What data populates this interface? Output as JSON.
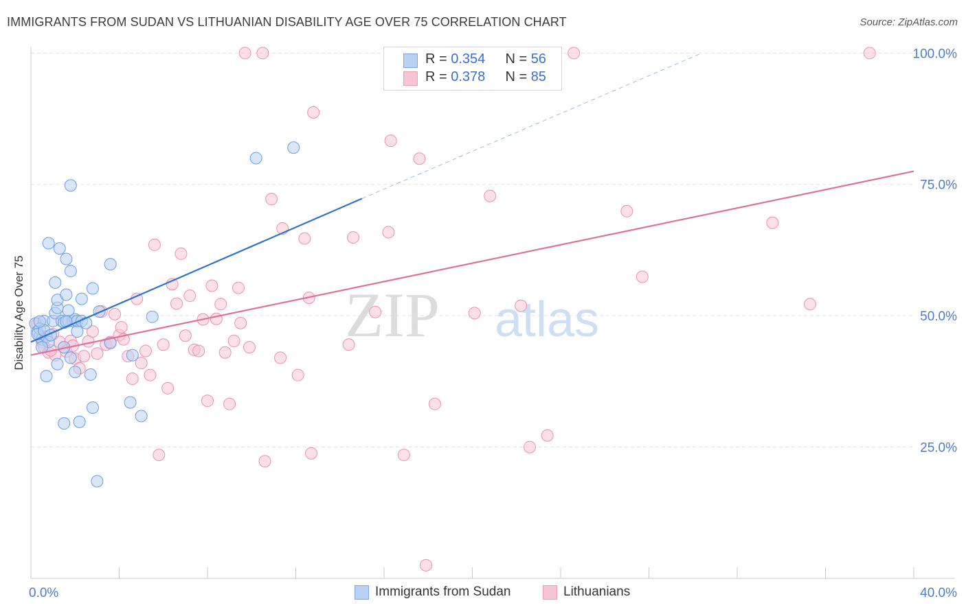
{
  "title": "IMMIGRANTS FROM SUDAN VS LITHUANIAN DISABILITY AGE OVER 75 CORRELATION CHART",
  "source": "Source: ZipAtlas.com",
  "watermark": {
    "zip": "ZIP",
    "atlas": "atlas"
  },
  "legend": {
    "rows": [
      {
        "r_label": "R = ",
        "r_value": "0.354",
        "n_label": "N = ",
        "n_value": "56",
        "color": "#7aa6e8",
        "fill": "#b9d2f3"
      },
      {
        "r_label": "R = ",
        "r_value": "0.378",
        "n_label": "N = ",
        "n_value": "85",
        "color": "#ee9db7",
        "fill": "#f7c6d5"
      }
    ]
  },
  "bottom_legend": [
    {
      "label": "Immigrants from Sudan",
      "color": "#7aa6e8",
      "fill": "#b9d2f3"
    },
    {
      "label": "Lithuanians",
      "color": "#ee9db7",
      "fill": "#f7c6d5"
    }
  ],
  "chart_data": {
    "type": "scatter",
    "title": "IMMIGRANTS FROM SUDAN VS LITHUANIAN DISABILITY AGE OVER 75 CORRELATION CHART",
    "xlabel": "",
    "ylabel": "Disability Age Over 75",
    "xlim": [
      0,
      40
    ],
    "ylim": [
      0,
      102
    ],
    "x_tick_labels": [
      "0.0%",
      "40.0%"
    ],
    "y_ticks": [
      25,
      50,
      75,
      100
    ],
    "y_tick_labels": [
      "25.0%",
      "50.0%",
      "75.0%",
      "100.0%"
    ],
    "grid": true,
    "legend_position": "top-center",
    "series": [
      {
        "name": "Immigrants from Sudan",
        "color": "#6b9de3",
        "fill": "#b9d2f3",
        "trend": {
          "x0": 0.0,
          "y0": 45.0,
          "x1": 15.0,
          "y1": 72.3,
          "dashed_to_x": 30.4,
          "dashed_to_y": 100
        },
        "points": [
          [
            0.2,
            48.5
          ],
          [
            0.3,
            47.0
          ],
          [
            0.4,
            46.0
          ],
          [
            0.5,
            45.5
          ],
          [
            0.6,
            49.0
          ],
          [
            0.7,
            46.0
          ],
          [
            0.8,
            45.0
          ],
          [
            0.5,
            44.0
          ],
          [
            0.4,
            47.5
          ],
          [
            0.3,
            46.5
          ],
          [
            0.7,
            38.5
          ],
          [
            0.8,
            63.8
          ],
          [
            1.0,
            49.0
          ],
          [
            1.1,
            50.5
          ],
          [
            1.2,
            51.5
          ],
          [
            1.1,
            56.3
          ],
          [
            1.2,
            53.0
          ],
          [
            1.2,
            40.8
          ],
          [
            1.3,
            62.8
          ],
          [
            1.4,
            49.0
          ],
          [
            1.5,
            44.0
          ],
          [
            1.5,
            29.5
          ],
          [
            1.5,
            48.7
          ],
          [
            1.6,
            54.0
          ],
          [
            1.6,
            60.8
          ],
          [
            1.7,
            49.0
          ],
          [
            1.7,
            51.0
          ],
          [
            1.8,
            42.0
          ],
          [
            1.8,
            58.5
          ],
          [
            1.8,
            74.8
          ],
          [
            1.9,
            49.0
          ],
          [
            2.0,
            49.3
          ],
          [
            2.0,
            39.3
          ],
          [
            2.1,
            47.0
          ],
          [
            2.1,
            49.0
          ],
          [
            2.2,
            29.8
          ],
          [
            2.3,
            49.0
          ],
          [
            2.3,
            53.2
          ],
          [
            2.7,
            38.8
          ],
          [
            2.8,
            55.2
          ],
          [
            2.8,
            32.5
          ],
          [
            3.0,
            18.5
          ],
          [
            3.1,
            50.8
          ],
          [
            3.6,
            44.8
          ],
          [
            3.6,
            59.8
          ],
          [
            4.5,
            33.5
          ],
          [
            4.6,
            42.5
          ],
          [
            5.0,
            30.9
          ],
          [
            5.5,
            49.8
          ],
          [
            10.2,
            80.0
          ],
          [
            11.9,
            82.0
          ],
          [
            0.6,
            47.2
          ],
          [
            0.9,
            46.3
          ],
          [
            1.6,
            48.9
          ],
          [
            2.5,
            48.6
          ],
          [
            0.4,
            48.9
          ]
        ]
      },
      {
        "name": "Lithuanians",
        "color": "#ec8fae",
        "fill": "#f7c6d5",
        "trend": {
          "x0": 0.0,
          "y0": 42.5,
          "x1": 40.0,
          "y1": 77.5
        },
        "points": [
          [
            0.3,
            48.5
          ],
          [
            0.5,
            45.0
          ],
          [
            0.6,
            44.0
          ],
          [
            0.8,
            43.0
          ],
          [
            1.0,
            46.5
          ],
          [
            1.1,
            42.5
          ],
          [
            1.3,
            45.0
          ],
          [
            1.5,
            44.0
          ],
          [
            1.6,
            43.2
          ],
          [
            1.8,
            45.2
          ],
          [
            2.0,
            41.8
          ],
          [
            2.2,
            40.0
          ],
          [
            2.4,
            42.3
          ],
          [
            2.6,
            45.1
          ],
          [
            2.8,
            47.0
          ],
          [
            3.0,
            42.8
          ],
          [
            3.2,
            50.8
          ],
          [
            3.4,
            44.5
          ],
          [
            3.6,
            45.0
          ],
          [
            3.8,
            50.3
          ],
          [
            4.0,
            46.3
          ],
          [
            4.1,
            47.8
          ],
          [
            4.2,
            45.5
          ],
          [
            4.4,
            42.3
          ],
          [
            4.6,
            38.0
          ],
          [
            4.8,
            53.2
          ],
          [
            5.0,
            41.0
          ],
          [
            5.2,
            43.3
          ],
          [
            5.4,
            38.7
          ],
          [
            5.6,
            63.5
          ],
          [
            5.8,
            23.5
          ],
          [
            6.0,
            44.5
          ],
          [
            6.2,
            36.2
          ],
          [
            6.4,
            56.0
          ],
          [
            6.6,
            52.3
          ],
          [
            6.8,
            61.8
          ],
          [
            7.0,
            46.2
          ],
          [
            7.2,
            53.8
          ],
          [
            7.4,
            43.5
          ],
          [
            7.6,
            43.3
          ],
          [
            7.8,
            49.3
          ],
          [
            8.0,
            33.8
          ],
          [
            8.2,
            55.7
          ],
          [
            8.4,
            49.4
          ],
          [
            8.6,
            52.2
          ],
          [
            8.8,
            43.0
          ],
          [
            9.0,
            33.2
          ],
          [
            9.2,
            45.2
          ],
          [
            9.4,
            55.3
          ],
          [
            9.5,
            48.6
          ],
          [
            9.7,
            100
          ],
          [
            9.9,
            44.0
          ],
          [
            10.5,
            100
          ],
          [
            10.6,
            22.3
          ],
          [
            10.9,
            72.2
          ],
          [
            11.3,
            42.0
          ],
          [
            11.4,
            66.6
          ],
          [
            12.1,
            38.7
          ],
          [
            12.4,
            64.7
          ],
          [
            12.6,
            53.4
          ],
          [
            12.7,
            23.8
          ],
          [
            12.8,
            88.7
          ],
          [
            14.4,
            44.5
          ],
          [
            14.6,
            64.9
          ],
          [
            15.6,
            50.7
          ],
          [
            16.2,
            65.9
          ],
          [
            16.3,
            83.3
          ],
          [
            16.9,
            23.5
          ],
          [
            17.6,
            79.9
          ],
          [
            17.9,
            2.5
          ],
          [
            18.3,
            33.2
          ],
          [
            20.1,
            50.5
          ],
          [
            20.7,
            100
          ],
          [
            20.8,
            72.8
          ],
          [
            22.6,
            25.0
          ],
          [
            22.2,
            51.9
          ],
          [
            23.4,
            27.2
          ],
          [
            24.6,
            100
          ],
          [
            27.0,
            69.9
          ],
          [
            27.7,
            57.4
          ],
          [
            33.6,
            67.7
          ],
          [
            35.3,
            52.2
          ],
          [
            38.0,
            100
          ],
          [
            1.9,
            44.3
          ],
          [
            0.9,
            43.4
          ]
        ]
      }
    ]
  }
}
